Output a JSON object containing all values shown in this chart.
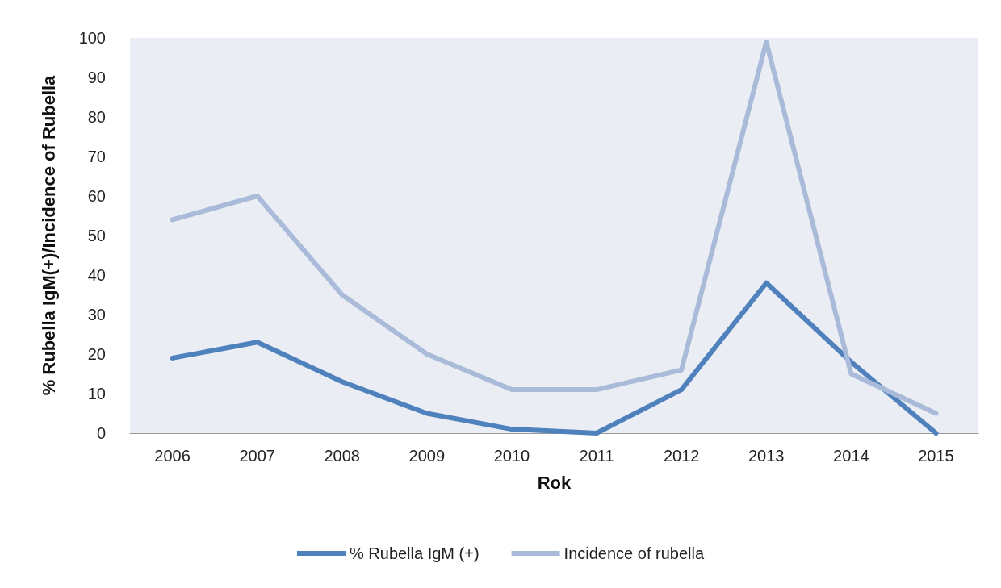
{
  "chart_data": {
    "type": "line",
    "xlabel": "Rok",
    "ylabel": "% Rubella IgM(+)/Incidence of Rubella",
    "categories": [
      "2006",
      "2007",
      "2008",
      "2009",
      "2010",
      "2011",
      "2012",
      "2013",
      "2014",
      "2015"
    ],
    "series": [
      {
        "name": "% Rubella IgM (+)",
        "color": "#4f81bd",
        "values": [
          19,
          23,
          13,
          5,
          1,
          0,
          11,
          38,
          18,
          0
        ]
      },
      {
        "name": "Incidence of rubella",
        "color": "#a9bbd8",
        "values": [
          54,
          60,
          35,
          20,
          11,
          11,
          16,
          99,
          15,
          5
        ]
      }
    ],
    "ylim": [
      0,
      100
    ],
    "yticks": [
      0,
      10,
      20,
      30,
      40,
      50,
      60,
      70,
      80,
      90,
      100
    ],
    "grid": false,
    "legend": "bottom",
    "marker": "none",
    "line_style": "solid"
  }
}
